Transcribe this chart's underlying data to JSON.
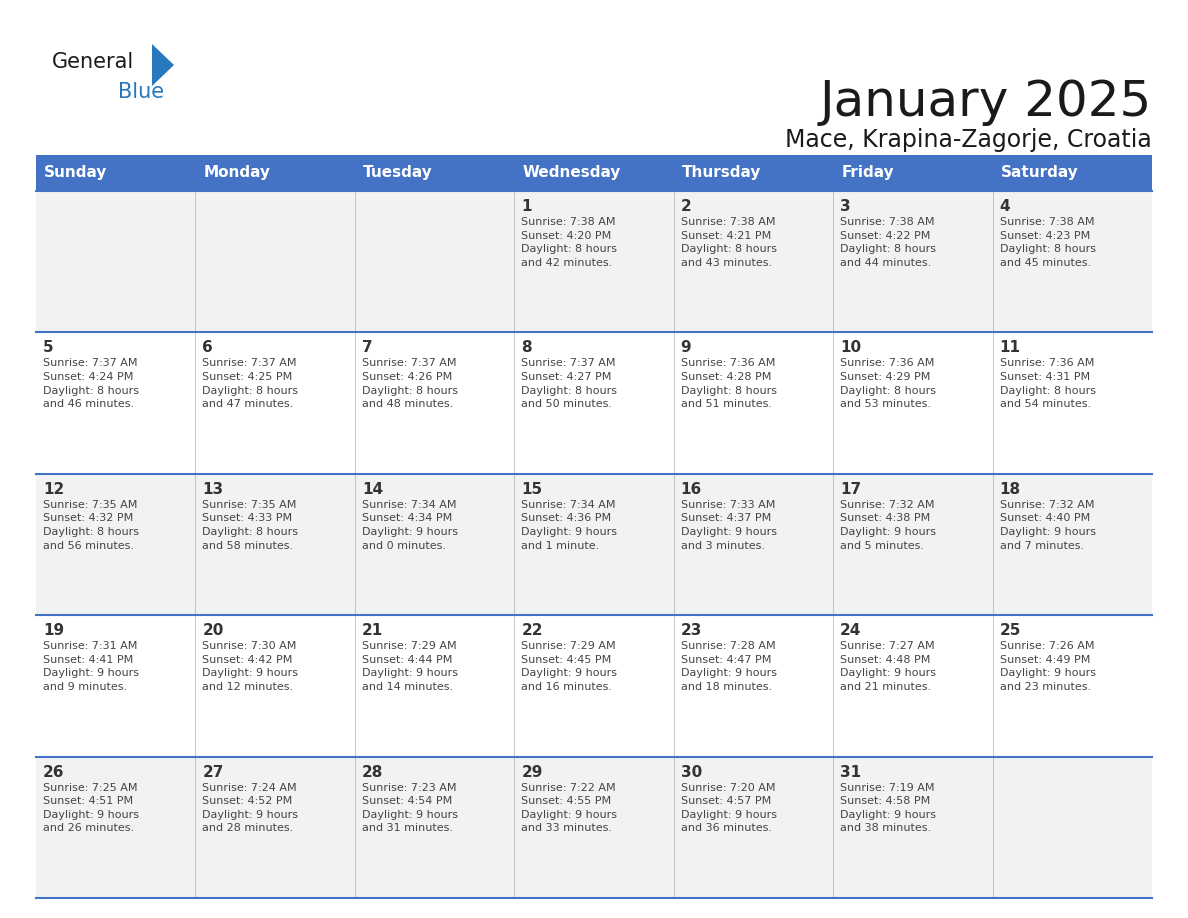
{
  "title": "January 2025",
  "subtitle": "Mace, Krapina-Zagorje, Croatia",
  "days_of_week": [
    "Sunday",
    "Monday",
    "Tuesday",
    "Wednesday",
    "Thursday",
    "Friday",
    "Saturday"
  ],
  "header_bg": "#4472C4",
  "header_text_color": "#FFFFFF",
  "cell_bg_odd": "#F2F2F2",
  "cell_bg_even": "#FFFFFF",
  "day_num_color": "#333333",
  "info_text_color": "#444444",
  "line_color": "#4472C4",
  "title_color": "#1a1a1a",
  "subtitle_color": "#1a1a1a",
  "logo_general_color": "#1a1a1a",
  "logo_blue_color": "#2878BE",
  "weeks": [
    [
      {
        "day": "",
        "info": ""
      },
      {
        "day": "",
        "info": ""
      },
      {
        "day": "",
        "info": ""
      },
      {
        "day": "1",
        "info": "Sunrise: 7:38 AM\nSunset: 4:20 PM\nDaylight: 8 hours\nand 42 minutes."
      },
      {
        "day": "2",
        "info": "Sunrise: 7:38 AM\nSunset: 4:21 PM\nDaylight: 8 hours\nand 43 minutes."
      },
      {
        "day": "3",
        "info": "Sunrise: 7:38 AM\nSunset: 4:22 PM\nDaylight: 8 hours\nand 44 minutes."
      },
      {
        "day": "4",
        "info": "Sunrise: 7:38 AM\nSunset: 4:23 PM\nDaylight: 8 hours\nand 45 minutes."
      }
    ],
    [
      {
        "day": "5",
        "info": "Sunrise: 7:37 AM\nSunset: 4:24 PM\nDaylight: 8 hours\nand 46 minutes."
      },
      {
        "day": "6",
        "info": "Sunrise: 7:37 AM\nSunset: 4:25 PM\nDaylight: 8 hours\nand 47 minutes."
      },
      {
        "day": "7",
        "info": "Sunrise: 7:37 AM\nSunset: 4:26 PM\nDaylight: 8 hours\nand 48 minutes."
      },
      {
        "day": "8",
        "info": "Sunrise: 7:37 AM\nSunset: 4:27 PM\nDaylight: 8 hours\nand 50 minutes."
      },
      {
        "day": "9",
        "info": "Sunrise: 7:36 AM\nSunset: 4:28 PM\nDaylight: 8 hours\nand 51 minutes."
      },
      {
        "day": "10",
        "info": "Sunrise: 7:36 AM\nSunset: 4:29 PM\nDaylight: 8 hours\nand 53 minutes."
      },
      {
        "day": "11",
        "info": "Sunrise: 7:36 AM\nSunset: 4:31 PM\nDaylight: 8 hours\nand 54 minutes."
      }
    ],
    [
      {
        "day": "12",
        "info": "Sunrise: 7:35 AM\nSunset: 4:32 PM\nDaylight: 8 hours\nand 56 minutes."
      },
      {
        "day": "13",
        "info": "Sunrise: 7:35 AM\nSunset: 4:33 PM\nDaylight: 8 hours\nand 58 minutes."
      },
      {
        "day": "14",
        "info": "Sunrise: 7:34 AM\nSunset: 4:34 PM\nDaylight: 9 hours\nand 0 minutes."
      },
      {
        "day": "15",
        "info": "Sunrise: 7:34 AM\nSunset: 4:36 PM\nDaylight: 9 hours\nand 1 minute."
      },
      {
        "day": "16",
        "info": "Sunrise: 7:33 AM\nSunset: 4:37 PM\nDaylight: 9 hours\nand 3 minutes."
      },
      {
        "day": "17",
        "info": "Sunrise: 7:32 AM\nSunset: 4:38 PM\nDaylight: 9 hours\nand 5 minutes."
      },
      {
        "day": "18",
        "info": "Sunrise: 7:32 AM\nSunset: 4:40 PM\nDaylight: 9 hours\nand 7 minutes."
      }
    ],
    [
      {
        "day": "19",
        "info": "Sunrise: 7:31 AM\nSunset: 4:41 PM\nDaylight: 9 hours\nand 9 minutes."
      },
      {
        "day": "20",
        "info": "Sunrise: 7:30 AM\nSunset: 4:42 PM\nDaylight: 9 hours\nand 12 minutes."
      },
      {
        "day": "21",
        "info": "Sunrise: 7:29 AM\nSunset: 4:44 PM\nDaylight: 9 hours\nand 14 minutes."
      },
      {
        "day": "22",
        "info": "Sunrise: 7:29 AM\nSunset: 4:45 PM\nDaylight: 9 hours\nand 16 minutes."
      },
      {
        "day": "23",
        "info": "Sunrise: 7:28 AM\nSunset: 4:47 PM\nDaylight: 9 hours\nand 18 minutes."
      },
      {
        "day": "24",
        "info": "Sunrise: 7:27 AM\nSunset: 4:48 PM\nDaylight: 9 hours\nand 21 minutes."
      },
      {
        "day": "25",
        "info": "Sunrise: 7:26 AM\nSunset: 4:49 PM\nDaylight: 9 hours\nand 23 minutes."
      }
    ],
    [
      {
        "day": "26",
        "info": "Sunrise: 7:25 AM\nSunset: 4:51 PM\nDaylight: 9 hours\nand 26 minutes."
      },
      {
        "day": "27",
        "info": "Sunrise: 7:24 AM\nSunset: 4:52 PM\nDaylight: 9 hours\nand 28 minutes."
      },
      {
        "day": "28",
        "info": "Sunrise: 7:23 AM\nSunset: 4:54 PM\nDaylight: 9 hours\nand 31 minutes."
      },
      {
        "day": "29",
        "info": "Sunrise: 7:22 AM\nSunset: 4:55 PM\nDaylight: 9 hours\nand 33 minutes."
      },
      {
        "day": "30",
        "info": "Sunrise: 7:20 AM\nSunset: 4:57 PM\nDaylight: 9 hours\nand 36 minutes."
      },
      {
        "day": "31",
        "info": "Sunrise: 7:19 AM\nSunset: 4:58 PM\nDaylight: 9 hours\nand 38 minutes."
      },
      {
        "day": "",
        "info": ""
      }
    ]
  ]
}
